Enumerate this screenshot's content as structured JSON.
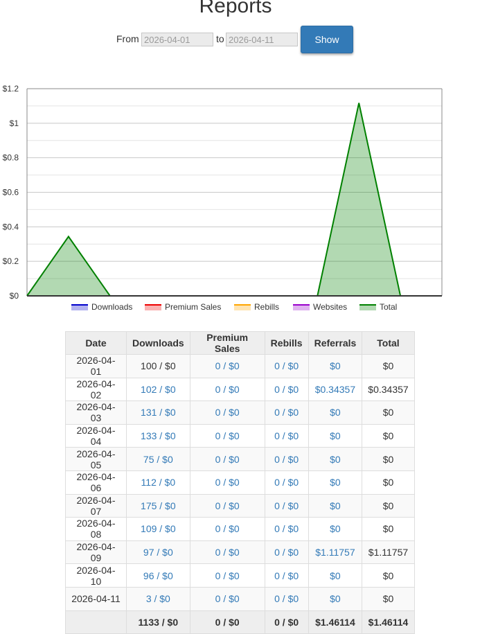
{
  "page": {
    "title": "Reports"
  },
  "form": {
    "from_label": "From",
    "from_value": "2026-04-01",
    "to_label": "to",
    "to_value": "2026-04-11",
    "show_label": "Show"
  },
  "chart_data": {
    "type": "area",
    "x": [
      "2026-04-01",
      "2026-04-02",
      "2026-04-03",
      "2026-04-04",
      "2026-04-05",
      "2026-04-06",
      "2026-04-07",
      "2026-04-08",
      "2026-04-09",
      "2026-04-10",
      "2026-04-11"
    ],
    "yticks": [
      "$0",
      "$0.2",
      "$0.4",
      "$0.6",
      "$0.8",
      "$1",
      "$1.2"
    ],
    "ylim": [
      0,
      1.2
    ],
    "grid": true,
    "legend_position": "bottom",
    "series": [
      {
        "name": "Downloads",
        "color": "#0000cc",
        "values": [
          0,
          0,
          0,
          0,
          0,
          0,
          0,
          0,
          0,
          0,
          0
        ]
      },
      {
        "name": "Premium Sales",
        "color": "#ee0000",
        "values": [
          0,
          0,
          0,
          0,
          0,
          0,
          0,
          0,
          0,
          0,
          0
        ]
      },
      {
        "name": "Rebills",
        "color": "#ffa500",
        "values": [
          0,
          0,
          0,
          0,
          0,
          0,
          0,
          0,
          0,
          0,
          0
        ]
      },
      {
        "name": "Websites",
        "color": "#9900cc",
        "values": [
          0,
          0,
          0,
          0,
          0,
          0,
          0,
          0,
          0,
          0,
          0
        ]
      },
      {
        "name": "Total",
        "color": "#008000",
        "values": [
          0,
          0.34357,
          0,
          0,
          0,
          0,
          0,
          0,
          1.11757,
          0,
          0
        ]
      }
    ]
  },
  "table": {
    "headers": [
      "Date",
      "Downloads",
      "Premium Sales",
      "Rebills",
      "Referrals",
      "Total"
    ],
    "rows": [
      {
        "date": "2026-04-01",
        "downloads": "100 / $0",
        "premium": "0 / $0",
        "rebills": "0 / $0",
        "referrals": "$0",
        "total": "$0"
      },
      {
        "date": "2026-04-02",
        "downloads": "102 / $0",
        "premium": "0 / $0",
        "rebills": "0 / $0",
        "referrals": "$0.34357",
        "total": "$0.34357"
      },
      {
        "date": "2026-04-03",
        "downloads": "131 / $0",
        "premium": "0 / $0",
        "rebills": "0 / $0",
        "referrals": "$0",
        "total": "$0"
      },
      {
        "date": "2026-04-04",
        "downloads": "133 / $0",
        "premium": "0 / $0",
        "rebills": "0 / $0",
        "referrals": "$0",
        "total": "$0"
      },
      {
        "date": "2026-04-05",
        "downloads": "75 / $0",
        "premium": "0 / $0",
        "rebills": "0 / $0",
        "referrals": "$0",
        "total": "$0"
      },
      {
        "date": "2026-04-06",
        "downloads": "112 / $0",
        "premium": "0 / $0",
        "rebills": "0 / $0",
        "referrals": "$0",
        "total": "$0"
      },
      {
        "date": "2026-04-07",
        "downloads": "175 / $0",
        "premium": "0 / $0",
        "rebills": "0 / $0",
        "referrals": "$0",
        "total": "$0"
      },
      {
        "date": "2026-04-08",
        "downloads": "109 / $0",
        "premium": "0 / $0",
        "rebills": "0 / $0",
        "referrals": "$0",
        "total": "$0"
      },
      {
        "date": "2026-04-09",
        "downloads": "97 / $0",
        "premium": "0 / $0",
        "rebills": "0 / $0",
        "referrals": "$1.11757",
        "total": "$1.11757"
      },
      {
        "date": "2026-04-10",
        "downloads": "96 / $0",
        "premium": "0 / $0",
        "rebills": "0 / $0",
        "referrals": "$0",
        "total": "$0"
      },
      {
        "date": "2026-04-11",
        "downloads": "3 / $0",
        "premium": "0 / $0",
        "rebills": "0 / $0",
        "referrals": "$0",
        "total": "$0"
      }
    ],
    "footer": {
      "date": "",
      "downloads": "1133 / $0",
      "premium": "0 / $0",
      "rebills": "0 / $0",
      "referrals": "$1.46114",
      "total": "$1.46114"
    }
  }
}
